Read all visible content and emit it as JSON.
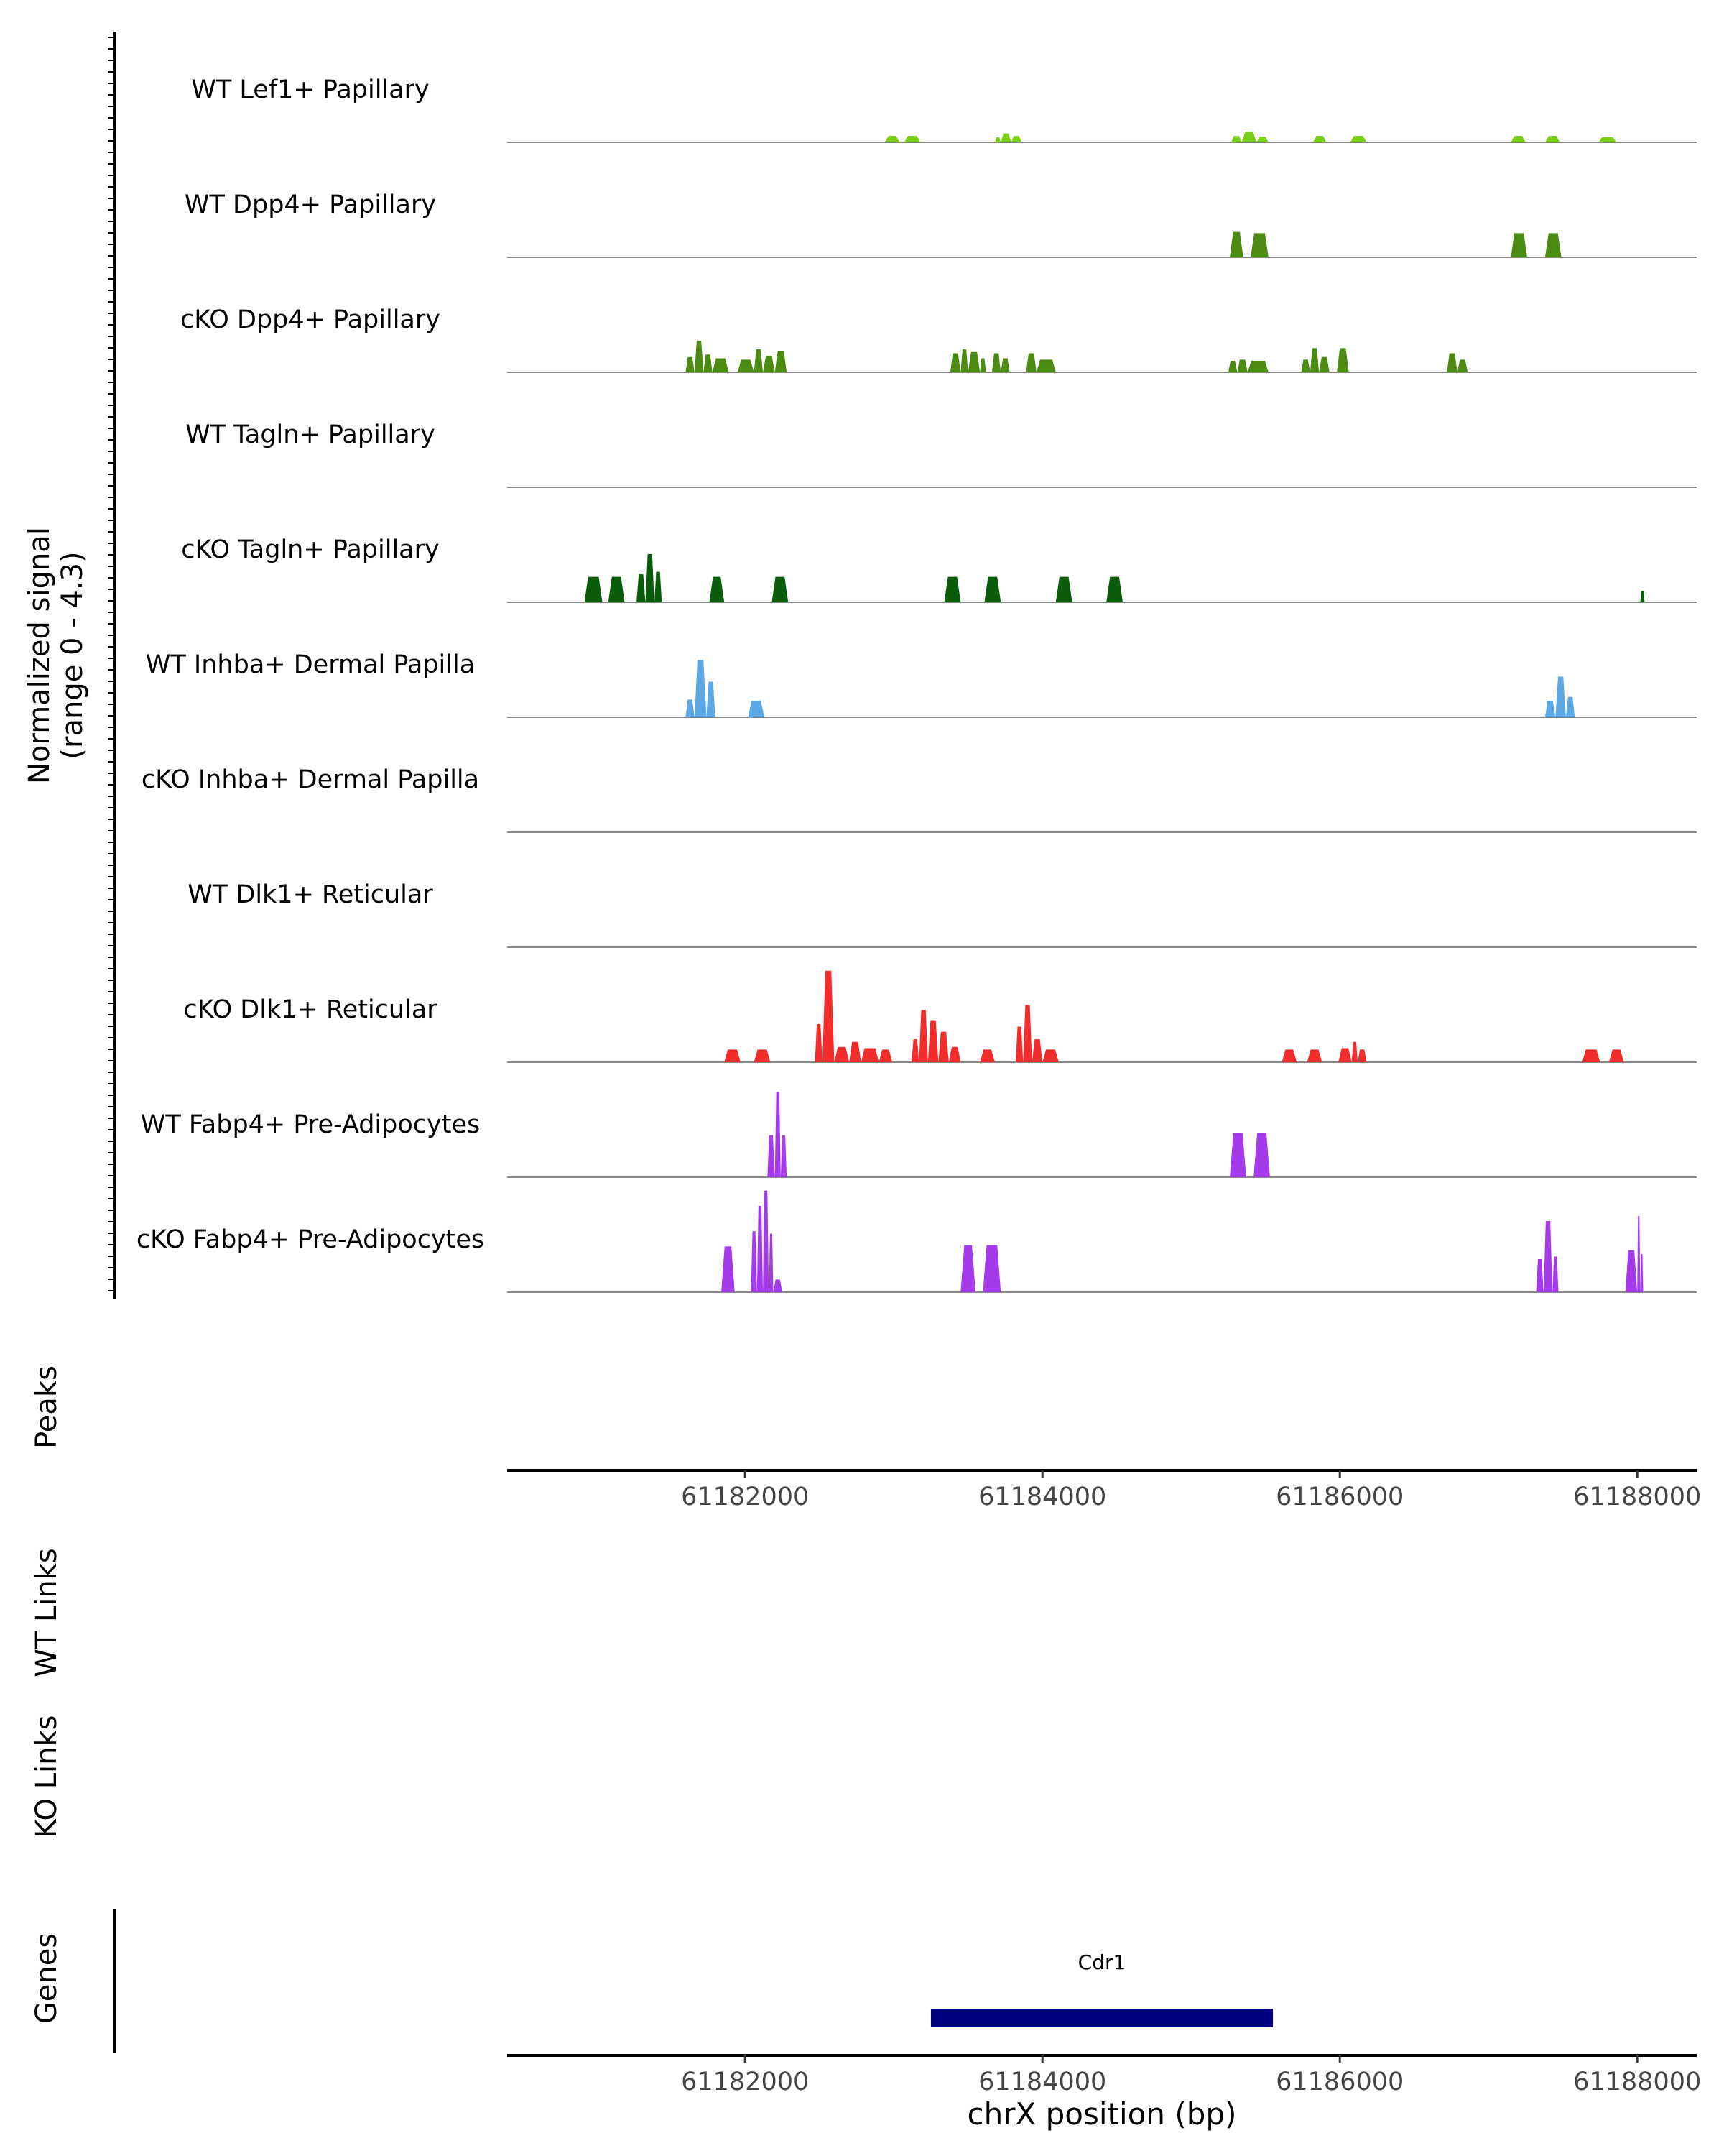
{
  "chart_data": {
    "type": "area",
    "title": "",
    "signal_ylabel": [
      "Normalized signal",
      "(range 0 - 4.3)"
    ],
    "signal_ylim": [
      0,
      4.3
    ],
    "xlabel": "chrX position (bp)",
    "xlim": [
      61180400,
      61188400
    ],
    "x_ticks": [
      61182000,
      61184000,
      61186000,
      61188000
    ],
    "x_tick_labels": [
      "61182000",
      "61184000",
      "61186000",
      "61188000"
    ],
    "tracks": [
      {
        "name": "WT Lef1+ Papillary",
        "color": "#7CCD1A",
        "peaks": [
          [
            61182940,
            61183040,
            0.25
          ],
          [
            61183070,
            61183180,
            0.25
          ],
          [
            61183680,
            61183720,
            0.2
          ],
          [
            61183720,
            61183790,
            0.35
          ],
          [
            61183790,
            61183860,
            0.25
          ],
          [
            61185270,
            61185340,
            0.25
          ],
          [
            61185340,
            61185440,
            0.42
          ],
          [
            61185440,
            61185520,
            0.22
          ],
          [
            61185820,
            61185910,
            0.25
          ],
          [
            61186070,
            61186180,
            0.25
          ],
          [
            61187150,
            61187250,
            0.25
          ],
          [
            61187380,
            61187480,
            0.25
          ],
          [
            61187740,
            61187860,
            0.2
          ]
        ]
      },
      {
        "name": "WT Dpp4+ Papillary",
        "color": "#4C8B12",
        "peaks": [
          [
            61185260,
            61185350,
            1.0
          ],
          [
            61185400,
            61185520,
            0.95
          ],
          [
            61187150,
            61187260,
            0.95
          ],
          [
            61187380,
            61187490,
            0.95
          ]
        ]
      },
      {
        "name": "cKO Dpp4+ Papillary",
        "color": "#4C8B12",
        "peaks": [
          [
            61181600,
            61181660,
            0.6
          ],
          [
            61181660,
            61181720,
            1.25
          ],
          [
            61181720,
            61181780,
            0.7
          ],
          [
            61181780,
            61181890,
            0.55
          ],
          [
            61181950,
            61182060,
            0.5
          ],
          [
            61182060,
            61182120,
            0.9
          ],
          [
            61182120,
            61182200,
            0.65
          ],
          [
            61182200,
            61182280,
            0.85
          ],
          [
            61183380,
            61183450,
            0.75
          ],
          [
            61183450,
            61183500,
            0.9
          ],
          [
            61183500,
            61183580,
            0.8
          ],
          [
            61183580,
            61183620,
            0.55
          ],
          [
            61183660,
            61183720,
            0.75
          ],
          [
            61183720,
            61183780,
            0.55
          ],
          [
            61183890,
            61183960,
            0.75
          ],
          [
            61183960,
            61184090,
            0.5
          ],
          [
            61185250,
            61185310,
            0.45
          ],
          [
            61185310,
            61185380,
            0.5
          ],
          [
            61185380,
            61185520,
            0.45
          ],
          [
            61185740,
            61185800,
            0.5
          ],
          [
            61185800,
            61185860,
            0.95
          ],
          [
            61185860,
            61185930,
            0.6
          ],
          [
            61185980,
            61186060,
            0.95
          ],
          [
            61186720,
            61186790,
            0.75
          ],
          [
            61186790,
            61186860,
            0.5
          ]
        ]
      },
      {
        "name": "WT Tagln+ Papillary",
        "color": "#0A5C0A",
        "peaks": []
      },
      {
        "name": "cKO Tagln+ Papillary",
        "color": "#0A5C0A",
        "peaks": [
          [
            61180920,
            61181040,
            1.0
          ],
          [
            61181080,
            61181190,
            1.0
          ],
          [
            61181270,
            61181330,
            1.1
          ],
          [
            61181330,
            61181390,
            1.9
          ],
          [
            61181390,
            61181440,
            1.2
          ],
          [
            61181760,
            61181860,
            1.0
          ],
          [
            61182180,
            61182290,
            1.0
          ],
          [
            61183340,
            61183450,
            1.0
          ],
          [
            61183610,
            61183720,
            1.0
          ],
          [
            61184090,
            61184200,
            1.0
          ],
          [
            61184430,
            61184540,
            1.0
          ],
          [
            61188020,
            61188050,
            0.45
          ]
        ]
      },
      {
        "name": "WT Inhba+ Dermal Papilla",
        "color": "#5BA8E5",
        "peaks": [
          [
            61181600,
            61181660,
            0.7
          ],
          [
            61181660,
            61181740,
            2.25
          ],
          [
            61181740,
            61181800,
            1.4
          ],
          [
            61182020,
            61182130,
            0.65
          ],
          [
            61187380,
            61187450,
            0.65
          ],
          [
            61187450,
            61187520,
            1.6
          ],
          [
            61187520,
            61187580,
            0.8
          ]
        ]
      },
      {
        "name": "cKO Inhba+ Dermal Papilla",
        "color": "#5BA8E5",
        "peaks": []
      },
      {
        "name": "WT Dlk1+ Reticular",
        "color": "#F22B2B",
        "peaks": []
      },
      {
        "name": "cKO Dlk1+ Reticular",
        "color": "#F22B2B",
        "peaks": [
          [
            61181860,
            61181970,
            0.5
          ],
          [
            61182060,
            61182170,
            0.5
          ],
          [
            61182470,
            61182520,
            1.5
          ],
          [
            61182520,
            61182600,
            3.6
          ],
          [
            61182600,
            61182700,
            0.6
          ],
          [
            61182700,
            61182780,
            0.8
          ],
          [
            61182780,
            61182900,
            0.55
          ],
          [
            61182900,
            61182990,
            0.5
          ],
          [
            61183120,
            61183170,
            0.9
          ],
          [
            61183170,
            61183230,
            2.05
          ],
          [
            61183230,
            61183300,
            1.65
          ],
          [
            61183300,
            61183370,
            1.2
          ],
          [
            61183370,
            61183450,
            0.6
          ],
          [
            61183580,
            61183680,
            0.5
          ],
          [
            61183820,
            61183870,
            1.4
          ],
          [
            61183870,
            61183930,
            2.25
          ],
          [
            61183930,
            61184000,
            0.9
          ],
          [
            61184000,
            61184110,
            0.5
          ],
          [
            61185610,
            61185710,
            0.5
          ],
          [
            61185780,
            61185880,
            0.5
          ],
          [
            61185990,
            61186080,
            0.55
          ],
          [
            61186080,
            61186120,
            0.8
          ],
          [
            61186120,
            61186180,
            0.5
          ],
          [
            61187630,
            61187750,
            0.5
          ],
          [
            61187810,
            61187910,
            0.5
          ]
        ]
      },
      {
        "name": "WT Fabp4+ Pre-Adipocytes",
        "color": "#A43AEA",
        "peaks": [
          [
            61182150,
            61182200,
            1.65
          ],
          [
            61182200,
            61182240,
            3.35
          ],
          [
            61182240,
            61182280,
            1.65
          ],
          [
            61185260,
            61185370,
            1.75
          ],
          [
            61185420,
            61185530,
            1.75
          ]
        ]
      },
      {
        "name": "cKO Fabp4+ Pre-Adipocytes",
        "color": "#A43AEA",
        "peaks": [
          [
            61181840,
            61181930,
            1.8
          ],
          [
            61182040,
            61182080,
            2.4
          ],
          [
            61182080,
            61182120,
            3.4
          ],
          [
            61182120,
            61182160,
            4.0
          ],
          [
            61182160,
            61182190,
            2.3
          ],
          [
            61182190,
            61182250,
            0.5
          ],
          [
            61183450,
            61183550,
            1.85
          ],
          [
            61183600,
            61183720,
            1.85
          ],
          [
            61187320,
            61187370,
            1.3
          ],
          [
            61187370,
            61187430,
            2.8
          ],
          [
            61187430,
            61187470,
            1.4
          ],
          [
            61187920,
            61188000,
            1.65
          ],
          [
            61188000,
            61188020,
            3.0
          ],
          [
            61188020,
            61188040,
            1.5
          ]
        ]
      }
    ],
    "annotation_tracks": [
      {
        "name": "Peaks",
        "items": []
      },
      {
        "name": "WT Links",
        "items": []
      },
      {
        "name": "KO Links",
        "items": []
      },
      {
        "name": "Genes",
        "items": [
          {
            "label": "Cdr1",
            "start": 61183250,
            "end": 61185550,
            "color": "#000080"
          }
        ]
      }
    ]
  }
}
